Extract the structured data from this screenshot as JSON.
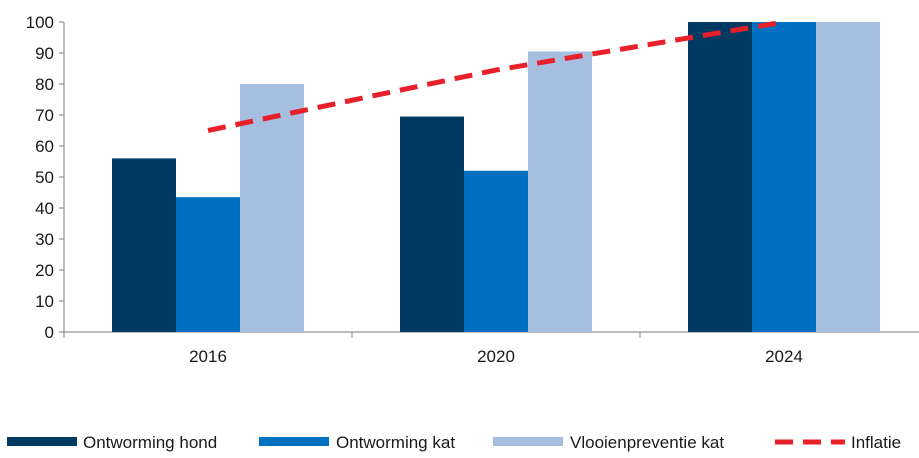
{
  "chart_data": {
    "type": "bar",
    "categories": [
      "2016",
      "2020",
      "2024"
    ],
    "series": [
      {
        "name": "Ontworming hond",
        "type": "bar",
        "color": "#003a63",
        "values": [
          56,
          69.5,
          100
        ]
      },
      {
        "name": "Ontworming kat",
        "type": "bar",
        "color": "#0070c0",
        "values": [
          43.5,
          52,
          100
        ]
      },
      {
        "name": "Vlooienpreventie kat",
        "type": "bar",
        "color": "#a6bfe1",
        "values": [
          80,
          90.5,
          100
        ]
      },
      {
        "name": "Inflatie",
        "type": "line",
        "style": "dashed",
        "color": "#e8202a",
        "values": [
          65,
          84.5,
          100
        ]
      }
    ],
    "ylim": [
      0,
      100
    ],
    "yticks": [
      "0",
      "10",
      "20",
      "30",
      "40",
      "50",
      "60",
      "70",
      "80",
      "90",
      "100"
    ],
    "grid": false,
    "legend_position": "bottom"
  }
}
